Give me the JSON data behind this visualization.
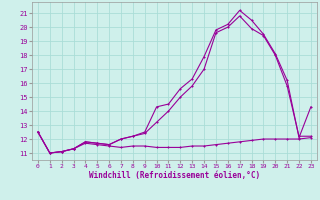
{
  "xlabel": "Windchill (Refroidissement éolien,°C)",
  "background_color": "#cff0eb",
  "grid_color": "#aaddd7",
  "line_color": "#990099",
  "spine_color": "#999999",
  "xlim": [
    -0.5,
    23.5
  ],
  "ylim": [
    10.5,
    21.8
  ],
  "xticks": [
    0,
    1,
    2,
    3,
    4,
    5,
    6,
    7,
    8,
    9,
    10,
    11,
    12,
    13,
    14,
    15,
    16,
    17,
    18,
    19,
    20,
    21,
    22,
    23
  ],
  "yticks": [
    11,
    12,
    13,
    14,
    15,
    16,
    17,
    18,
    19,
    20,
    21
  ],
  "series1_x": [
    0,
    1,
    2,
    3,
    4,
    5,
    6,
    7,
    8,
    9,
    10,
    11,
    12,
    13,
    14,
    15,
    16,
    17,
    18,
    19,
    20,
    21,
    22,
    23
  ],
  "series1_y": [
    12.5,
    11.0,
    11.1,
    11.3,
    11.7,
    11.6,
    11.5,
    11.4,
    11.5,
    11.5,
    11.4,
    11.4,
    11.4,
    11.5,
    11.5,
    11.6,
    11.7,
    11.8,
    11.9,
    12.0,
    12.0,
    12.0,
    12.0,
    12.1
  ],
  "series2_x": [
    0,
    1,
    2,
    3,
    4,
    5,
    6,
    7,
    8,
    9,
    10,
    11,
    12,
    13,
    14,
    15,
    16,
    17,
    18,
    19,
    20,
    21,
    22,
    23
  ],
  "series2_y": [
    12.5,
    11.0,
    11.1,
    11.3,
    11.8,
    11.7,
    11.6,
    12.0,
    12.2,
    12.5,
    14.3,
    14.5,
    15.6,
    16.3,
    17.9,
    19.8,
    20.2,
    21.2,
    20.5,
    19.5,
    18.1,
    16.2,
    12.1,
    14.3
  ],
  "series3_x": [
    0,
    1,
    2,
    3,
    4,
    5,
    6,
    7,
    8,
    9,
    10,
    11,
    12,
    13,
    14,
    15,
    16,
    17,
    18,
    19,
    20,
    21,
    22,
    23
  ],
  "series3_y": [
    12.5,
    11.0,
    11.1,
    11.3,
    11.8,
    11.7,
    11.6,
    12.0,
    12.2,
    12.4,
    13.2,
    14.0,
    15.0,
    15.8,
    17.0,
    19.6,
    20.0,
    20.8,
    19.9,
    19.4,
    18.0,
    15.8,
    12.2,
    12.2
  ]
}
